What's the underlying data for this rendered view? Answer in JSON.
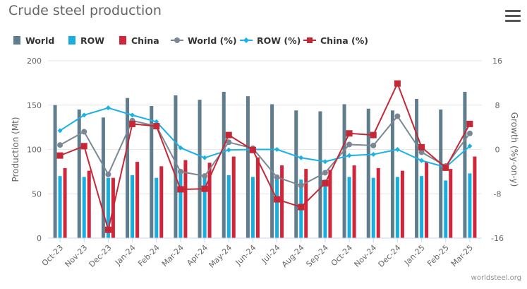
{
  "title": "Crude steel production",
  "menu_icon": "hamburger-menu-icon",
  "credit": "worldsteel.org",
  "colors": {
    "world_bar": "#5f7d8c",
    "row_bar": "#19aee0",
    "china_bar": "#d0253a",
    "world_line": "#7b8893",
    "row_line": "#1ab1e6",
    "china_line": "#c62736",
    "grid": "#e6e6e6",
    "axis_text": "#666666"
  },
  "chart_data": {
    "type": "bar",
    "categories": [
      "Oct-23",
      "Nov-23",
      "Dec-23",
      "Jan-24",
      "Feb-24",
      "Mar-24",
      "Apr-24",
      "May-24",
      "Jun-24",
      "Jul-24",
      "Aug-24",
      "Sep-24",
      "Oct-24",
      "Nov-24",
      "Dec-24",
      "Jan-25",
      "Feb-25",
      "Mar-25"
    ],
    "ylabel": "Production (Mt)",
    "ylabel_right": "Growth (%y-on-y)",
    "ylim": [
      0,
      200
    ],
    "yticks": [
      0,
      50,
      100,
      150,
      200
    ],
    "ylim_right": [
      -16,
      16
    ],
    "yticks_right": [
      -16,
      -8,
      0,
      8,
      16
    ],
    "grid": true,
    "legend": "top-left",
    "series": [
      {
        "name": "World",
        "type": "bar",
        "axis": "left",
        "values": [
          150,
          145,
          136,
          158,
          149,
          161,
          156,
          165,
          160,
          151,
          144,
          143,
          151,
          146,
          144,
          157,
          145,
          165
        ]
      },
      {
        "name": "ROW",
        "type": "bar",
        "axis": "left",
        "values": [
          70,
          69,
          68,
          71,
          68,
          73,
          71,
          71,
          69,
          69,
          66,
          66,
          69,
          68,
          69,
          70,
          65,
          73
        ]
      },
      {
        "name": "China",
        "type": "bar",
        "axis": "left",
        "values": [
          79,
          76,
          68,
          86,
          81,
          88,
          85,
          92,
          91,
          82,
          78,
          77,
          82,
          79,
          76,
          86,
          78,
          92
        ]
      },
      {
        "name": "World (%)",
        "type": "line",
        "axis": "right",
        "values": [
          0.8,
          3.2,
          -4.5,
          5.2,
          4.2,
          -4.0,
          -4.8,
          1.3,
          0.2,
          -5.0,
          -6.5,
          -4.2,
          0.9,
          0.7,
          6.0,
          -0.5,
          -3.0,
          2.9
        ]
      },
      {
        "name": "ROW (%)",
        "type": "line",
        "axis": "right",
        "values": [
          3.4,
          6.2,
          7.5,
          6.2,
          5.0,
          0.3,
          -1.5,
          -0.1,
          0.0,
          0.0,
          -1.5,
          -2.2,
          -1.1,
          -0.9,
          0.0,
          -2.0,
          -3.2,
          0.6
        ]
      },
      {
        "name": "China (%)",
        "type": "line",
        "axis": "right",
        "values": [
          -1.1,
          0.6,
          -14.5,
          4.6,
          4.2,
          -7.2,
          -7.1,
          2.6,
          -0.1,
          -9.0,
          -10.4,
          -6.1,
          2.9,
          2.6,
          11.9,
          0.4,
          -3.3,
          4.6
        ]
      }
    ]
  },
  "legend_items": [
    {
      "label": "World",
      "symbol": "bar",
      "color": "#5f7d8c"
    },
    {
      "label": "ROW",
      "symbol": "bar",
      "color": "#19aee0"
    },
    {
      "label": "China",
      "symbol": "bar",
      "color": "#d0253a"
    },
    {
      "label": "World (%)",
      "symbol": "circle",
      "color": "#7b8893"
    },
    {
      "label": "ROW (%)",
      "symbol": "diamond",
      "color": "#1ab1e6"
    },
    {
      "label": "China (%)",
      "symbol": "square",
      "color": "#c62736"
    }
  ]
}
